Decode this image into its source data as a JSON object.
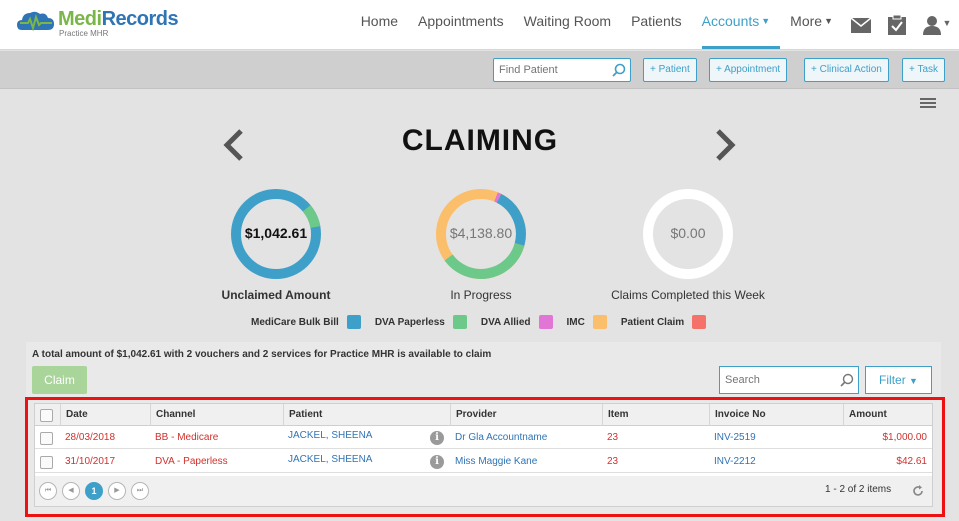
{
  "brand": {
    "name_part1": "Medi",
    "name_part2": "Records",
    "subtitle": "Practice MHR"
  },
  "nav": {
    "items": [
      {
        "label": "Home"
      },
      {
        "label": "Appointments"
      },
      {
        "label": "Waiting Room"
      },
      {
        "label": "Patients"
      },
      {
        "label": "Accounts",
        "active": true
      },
      {
        "label": "More"
      }
    ],
    "icons": [
      "mail-icon",
      "clipboard-check-icon",
      "user-icon"
    ]
  },
  "actionbar": {
    "find_patient_placeholder": "Find Patient",
    "buttons": [
      "+ Patient",
      "+ Appointment",
      "+ Clinical Action",
      "+ Task"
    ]
  },
  "page": {
    "title": "CLAIMING"
  },
  "summaries": [
    {
      "value": "$1,042.61",
      "label": "Unclaimed Amount",
      "emphasis": true
    },
    {
      "value": "$4,138.80",
      "label": "In Progress",
      "emphasis": false
    },
    {
      "value": "$0.00",
      "label": "Claims Completed this Week",
      "emphasis": false
    }
  ],
  "legend": [
    {
      "label": "MediCare Bulk Bill",
      "color": "#3ea0c9"
    },
    {
      "label": "DVA Paperless",
      "color": "#6cc98a"
    },
    {
      "label": "DVA Allied",
      "color": "#e276d6"
    },
    {
      "label": "IMC",
      "color": "#fbbe6a"
    },
    {
      "label": "Patient Claim",
      "color": "#f4726a"
    }
  ],
  "claim_panel": {
    "message": "A total amount of $1,042.61 with 2 vouchers and 2 services for Practice MHR is available to claim",
    "claim_button": "Claim",
    "search_placeholder": "Search",
    "filter_button": "Filter"
  },
  "table": {
    "columns": [
      "Date",
      "Channel",
      "Patient",
      "Provider",
      "Item",
      "Invoice No",
      "Amount"
    ],
    "rows": [
      {
        "date": "28/03/2018",
        "channel": "BB - Medicare",
        "patient": "JACKEL, SHEENA",
        "provider": "Dr Gla Accountname",
        "item": "23",
        "invoice": "INV-2519",
        "amount": "$1,000.00"
      },
      {
        "date": "31/10/2017",
        "channel": "DVA - Paperless",
        "patient": "JACKEL, SHEENA",
        "provider": "Miss Maggie Kane",
        "item": "23",
        "invoice": "INV-2212",
        "amount": "$42.61"
      }
    ],
    "pager": {
      "current_page": "1",
      "info": "1 - 2 of 2 items"
    }
  }
}
